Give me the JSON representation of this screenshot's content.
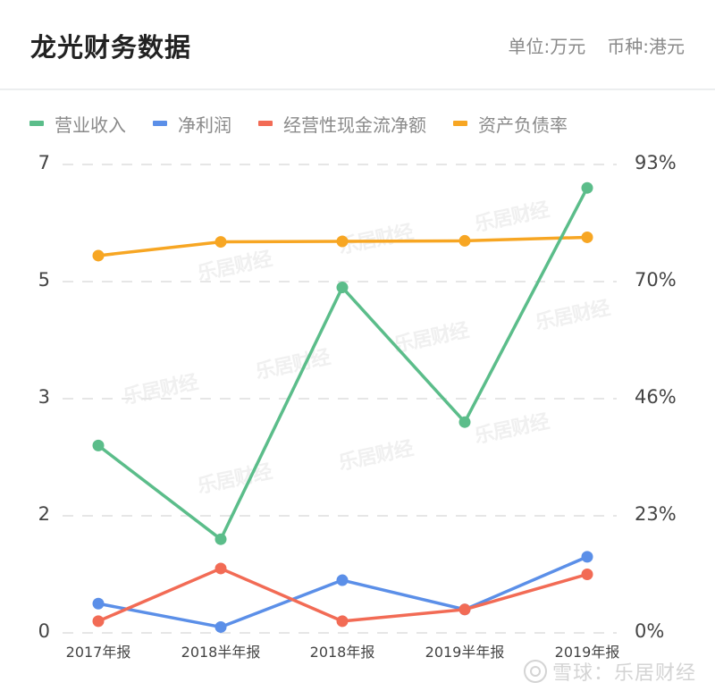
{
  "header": {
    "title": "龙光财务数据",
    "unit": "单位:万元",
    "currency": "币种:港元"
  },
  "legend": [
    {
      "label": "营业收入",
      "color": "#5bbd8a"
    },
    {
      "label": "净利润",
      "color": "#5b8fe8"
    },
    {
      "label": "经营性现金流净额",
      "color": "#f26b55"
    },
    {
      "label": "资产负债率",
      "color": "#f7a623"
    }
  ],
  "footer": {
    "watermark": "雪球：乐居财经"
  },
  "watermark_text": "乐居财经",
  "chart_data": {
    "type": "line",
    "title": "龙光财务数据",
    "subtitle": "单位:万元  币种:港元",
    "categories": [
      "2017年报",
      "2018半年报",
      "2018年报",
      "2019半年报",
      "2019年报"
    ],
    "y_left": {
      "ticks": [
        "0",
        "2",
        "3",
        "5",
        "7"
      ],
      "tick_values": [
        0,
        2,
        3,
        5,
        7
      ],
      "range": [
        0,
        7
      ]
    },
    "y_right": {
      "ticks": [
        "0%",
        "23%",
        "46%",
        "70%",
        "93%"
      ],
      "tick_values": [
        0,
        23,
        46,
        70,
        93
      ],
      "range": [
        0,
        93
      ]
    },
    "grid": "dashed horizontal",
    "legend_position": "top",
    "series": [
      {
        "name": "营业收入",
        "axis": "left",
        "color": "#5bbd8a",
        "values": [
          2.6,
          1.6,
          4.9,
          2.8,
          6.6
        ]
      },
      {
        "name": "净利润",
        "axis": "left",
        "color": "#5b8fe8",
        "values": [
          0.5,
          0.1,
          0.9,
          0.4,
          1.3
        ]
      },
      {
        "name": "经营性现金流净额",
        "axis": "left",
        "color": "#f26b55",
        "values": [
          0.2,
          1.1,
          0.2,
          0.4,
          1.0
        ]
      },
      {
        "name": "资产负债率",
        "axis": "right",
        "color": "#f7a623",
        "values": [
          75.1,
          77.8,
          77.9,
          78.0,
          78.7
        ]
      }
    ]
  }
}
